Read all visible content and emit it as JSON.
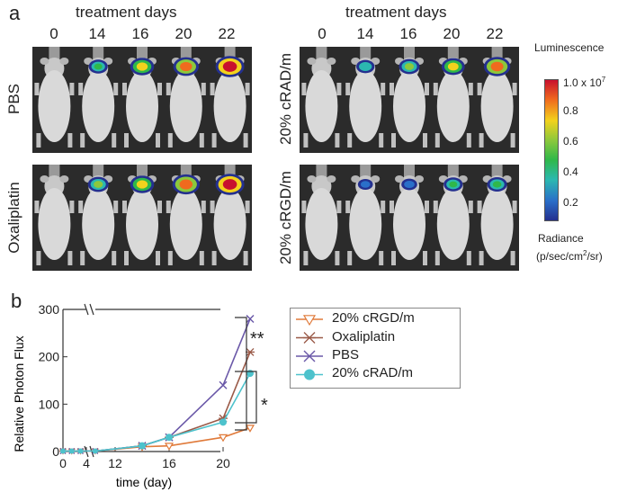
{
  "panel_a": {
    "letter": "a",
    "left_title": "treatment days",
    "right_title": "treatment days",
    "days": [
      "0",
      "14",
      "16",
      "20",
      "22"
    ],
    "rows": {
      "left_top": "PBS",
      "left_bottom": "Oxaliplatin",
      "right_top": "20% cRAD/m",
      "right_bottom": "20% cRGD/m"
    },
    "signal_levels": {
      "PBS": [
        0,
        0.4,
        0.7,
        0.8,
        1.0
      ],
      "Oxaliplatin": [
        0,
        0.5,
        0.7,
        0.9,
        1.0
      ],
      "20% cRAD/m": [
        0,
        0.35,
        0.5,
        0.65,
        0.85
      ],
      "20% cRGD/m": [
        0,
        0.15,
        0.2,
        0.4,
        0.45
      ]
    },
    "colorbar": {
      "title": "Luminescence",
      "max_label": "1.0 x 10",
      "max_exp": "7",
      "ticks": [
        "0.8",
        "0.6",
        "0.4",
        "0.2"
      ],
      "unit_title": "Radiance",
      "unit_pre": "(p/sec/cm",
      "unit_exp": "2",
      "unit_post": "/sr)",
      "colors": [
        "#c8102e",
        "#f06a1e",
        "#f2d21d",
        "#8cc83c",
        "#2fb84a",
        "#2bb8b0",
        "#2a6fc9",
        "#24308f"
      ]
    }
  },
  "panel_b": {
    "letter": "b",
    "legend": [
      "20% cRGD/m",
      "Oxaliplatin",
      "PBS",
      "20% cRAD/m"
    ],
    "sig_double": "**",
    "sig_single": "*"
  },
  "chart_data": {
    "type": "line",
    "xlabel": "time (day)",
    "ylabel": "Relative Photon Flux",
    "x": [
      0,
      14,
      16,
      20,
      22
    ],
    "xticks": [
      "0",
      "4",
      "12",
      "16",
      "20"
    ],
    "yticks": [
      "0",
      "100",
      "200",
      "300"
    ],
    "ylim": [
      0,
      300
    ],
    "series": [
      {
        "name": "20% cRGD/m",
        "color": "#e07a3a",
        "marker": "triangle-down",
        "values": [
          1,
          10,
          12,
          30,
          50
        ]
      },
      {
        "name": "Oxaliplatin",
        "color": "#9a5a48",
        "marker": "asterisk",
        "values": [
          1,
          12,
          30,
          70,
          210
        ]
      },
      {
        "name": "PBS",
        "color": "#6a58a8",
        "marker": "x",
        "values": [
          1,
          12,
          30,
          140,
          280
        ]
      },
      {
        "name": "20% cRAD/m",
        "color": "#4dc2cc",
        "marker": "circle",
        "values": [
          1,
          12,
          30,
          62,
          165
        ]
      }
    ]
  }
}
